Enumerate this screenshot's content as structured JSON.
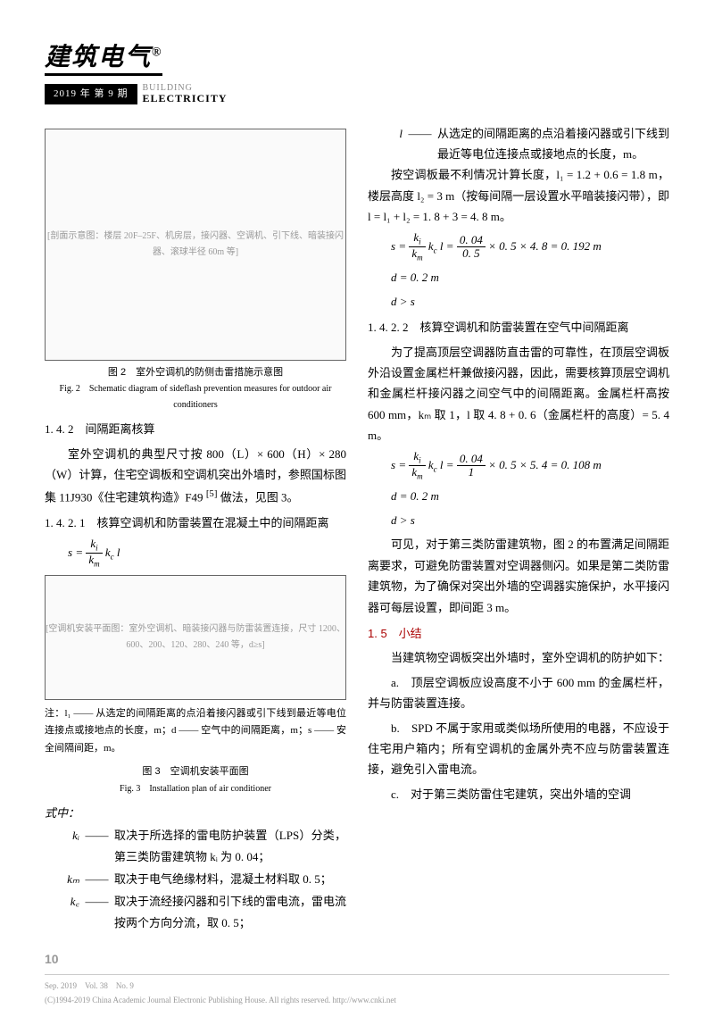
{
  "header": {
    "journal_cn": "建筑电气",
    "reg_mark": "®",
    "issue": "2019 年 第 9 期",
    "sub_en_top": "BUILDING",
    "sub_en_bot": "ELECTRICITY"
  },
  "fig2": {
    "placeholder": "[剖面示意图：楼层 20F–25F、机房层，接闪器、空调机、引下线、暗装接闪器、滚球半径 60m 等]",
    "cap_cn": "图 2　室外空调机的防侧击雷措施示意图",
    "cap_en": "Fig. 2　Schematic diagram of sideflash prevention measures for outdoor air conditioners"
  },
  "sec142": "1. 4. 2　间隔距离核算",
  "p1": "室外空调机的典型尺寸按 800（L）× 600（H）× 280（W）计算，住宅空调板和空调机突出外墙时，参照国标图集 11J930《住宅建筑构造》F49 ",
  "p1_ref": "[5]",
  "p1_tail": " 做法，见图 3。",
  "sec1421": "1. 4. 2. 1　核算空调机和防雷装置在混凝土中的间隔距离",
  "formula_s": {
    "s": "s",
    "eq": " = ",
    "ki": "k",
    "sub_i": "i",
    "km": "k",
    "sub_m": "m",
    "kc": "k",
    "sub_c": "c",
    "l": " l"
  },
  "fig3": {
    "placeholder": "[空调机安装平面图：室外空调机、暗装接闪器与防雷装置连接，尺寸 1200、600、200、120、280、240 等，d≥s]",
    "note": "注：l₁ —— 从选定的间隔距离的点沿着接闪器或引下线到最近等电位连接点或接地点的长度，m；d —— 空气中的间隔距离，m；s —— 安全间隔间距，m。",
    "cap_cn": "图 3　空调机安装平面图",
    "cap_en": "Fig. 3　Installation plan of air conditioner"
  },
  "where_head": "式中：",
  "where": [
    {
      "sym": "kᵢ",
      "txt": "取决于所选择的雷电防护装置（LPS）分类，第三类防雷建筑物 kᵢ 为 0. 04；"
    },
    {
      "sym": "kₘ",
      "txt": "取决于电气绝缘材料，混凝土材料取 0. 5；"
    },
    {
      "sym": "k꜀",
      "txt": "取决于流经接闪器和引下线的雷电流，雷电流按两个方向分流，取 0. 5；"
    },
    {
      "sym": "l",
      "txt": "从选定的间隔距离的点沿着接闪器或引下线到最近等电位连接点或接地点的长度，m。"
    }
  ],
  "p2": "按空调板最不利情况计算长度，l₁ = 1.2 + 0.6 = 1.8 m，楼层高度 l₂ = 3 m（按每间隔一层设置水平暗装接闪带），即 l = l₁ + l₂ = 1. 8 + 3 = 4. 8 m。",
  "calc1_a": " × 0. 5 × 4. 8 = 0. 192 m",
  "calc1_num": "0. 04",
  "calc1_den": "0. 5",
  "calc1_d": "d = 0. 2 m",
  "calc1_ds": "d > s",
  "sec1422": "1. 4. 2. 2　核算空调机和防雷装置在空气中间隔距离",
  "p3": "为了提高顶层空调器防直击雷的可靠性，在顶层空调板外沿设置金属栏杆兼做接闪器，因此，需要核算顶层空调机和金属栏杆接闪器之间空气中的间隔距离。金属栏杆高按 600 mm，kₘ 取 1，l 取 4. 8 + 0. 6（金属栏杆的高度）= 5. 4 m。",
  "calc2_num": "0. 04",
  "calc2_den": "1",
  "calc2_a": " × 0. 5 × 5. 4 = 0. 108 m",
  "calc2_d": "d = 0. 2 m",
  "calc2_ds": "d > s",
  "p4": "可见，对于第三类防雷建筑物，图 2 的布置满足间隔距离要求，可避免防雷装置对空调器侧闪。如果是第二类防雷建筑物，为了确保对突出外墙的空调器实施保护，水平接闪器可每层设置，即间距 3 m。",
  "sec15": "1. 5　小结",
  "p5": "当建筑物空调板突出外墙时，室外空调机的防护如下：",
  "li_a": "a.　顶层空调板应设高度不小于 600 mm 的金属栏杆，并与防雷装置连接。",
  "li_b": "b.　SPD 不属于家用或类似场所使用的电器，不应设于住宅用户箱内；所有空调机的金属外壳不应与防雷装置连接，避免引入雷电流。",
  "li_c": "c.　对于第三类防雷住宅建筑，突出外墙的空调",
  "footer": {
    "page": "10",
    "line1": "Sep. 2019　Vol. 38　No. 9",
    "line2": "(C)1994-2019 China Academic Journal Electronic Publishing House. All rights reserved.    http://www.cnki.net"
  }
}
